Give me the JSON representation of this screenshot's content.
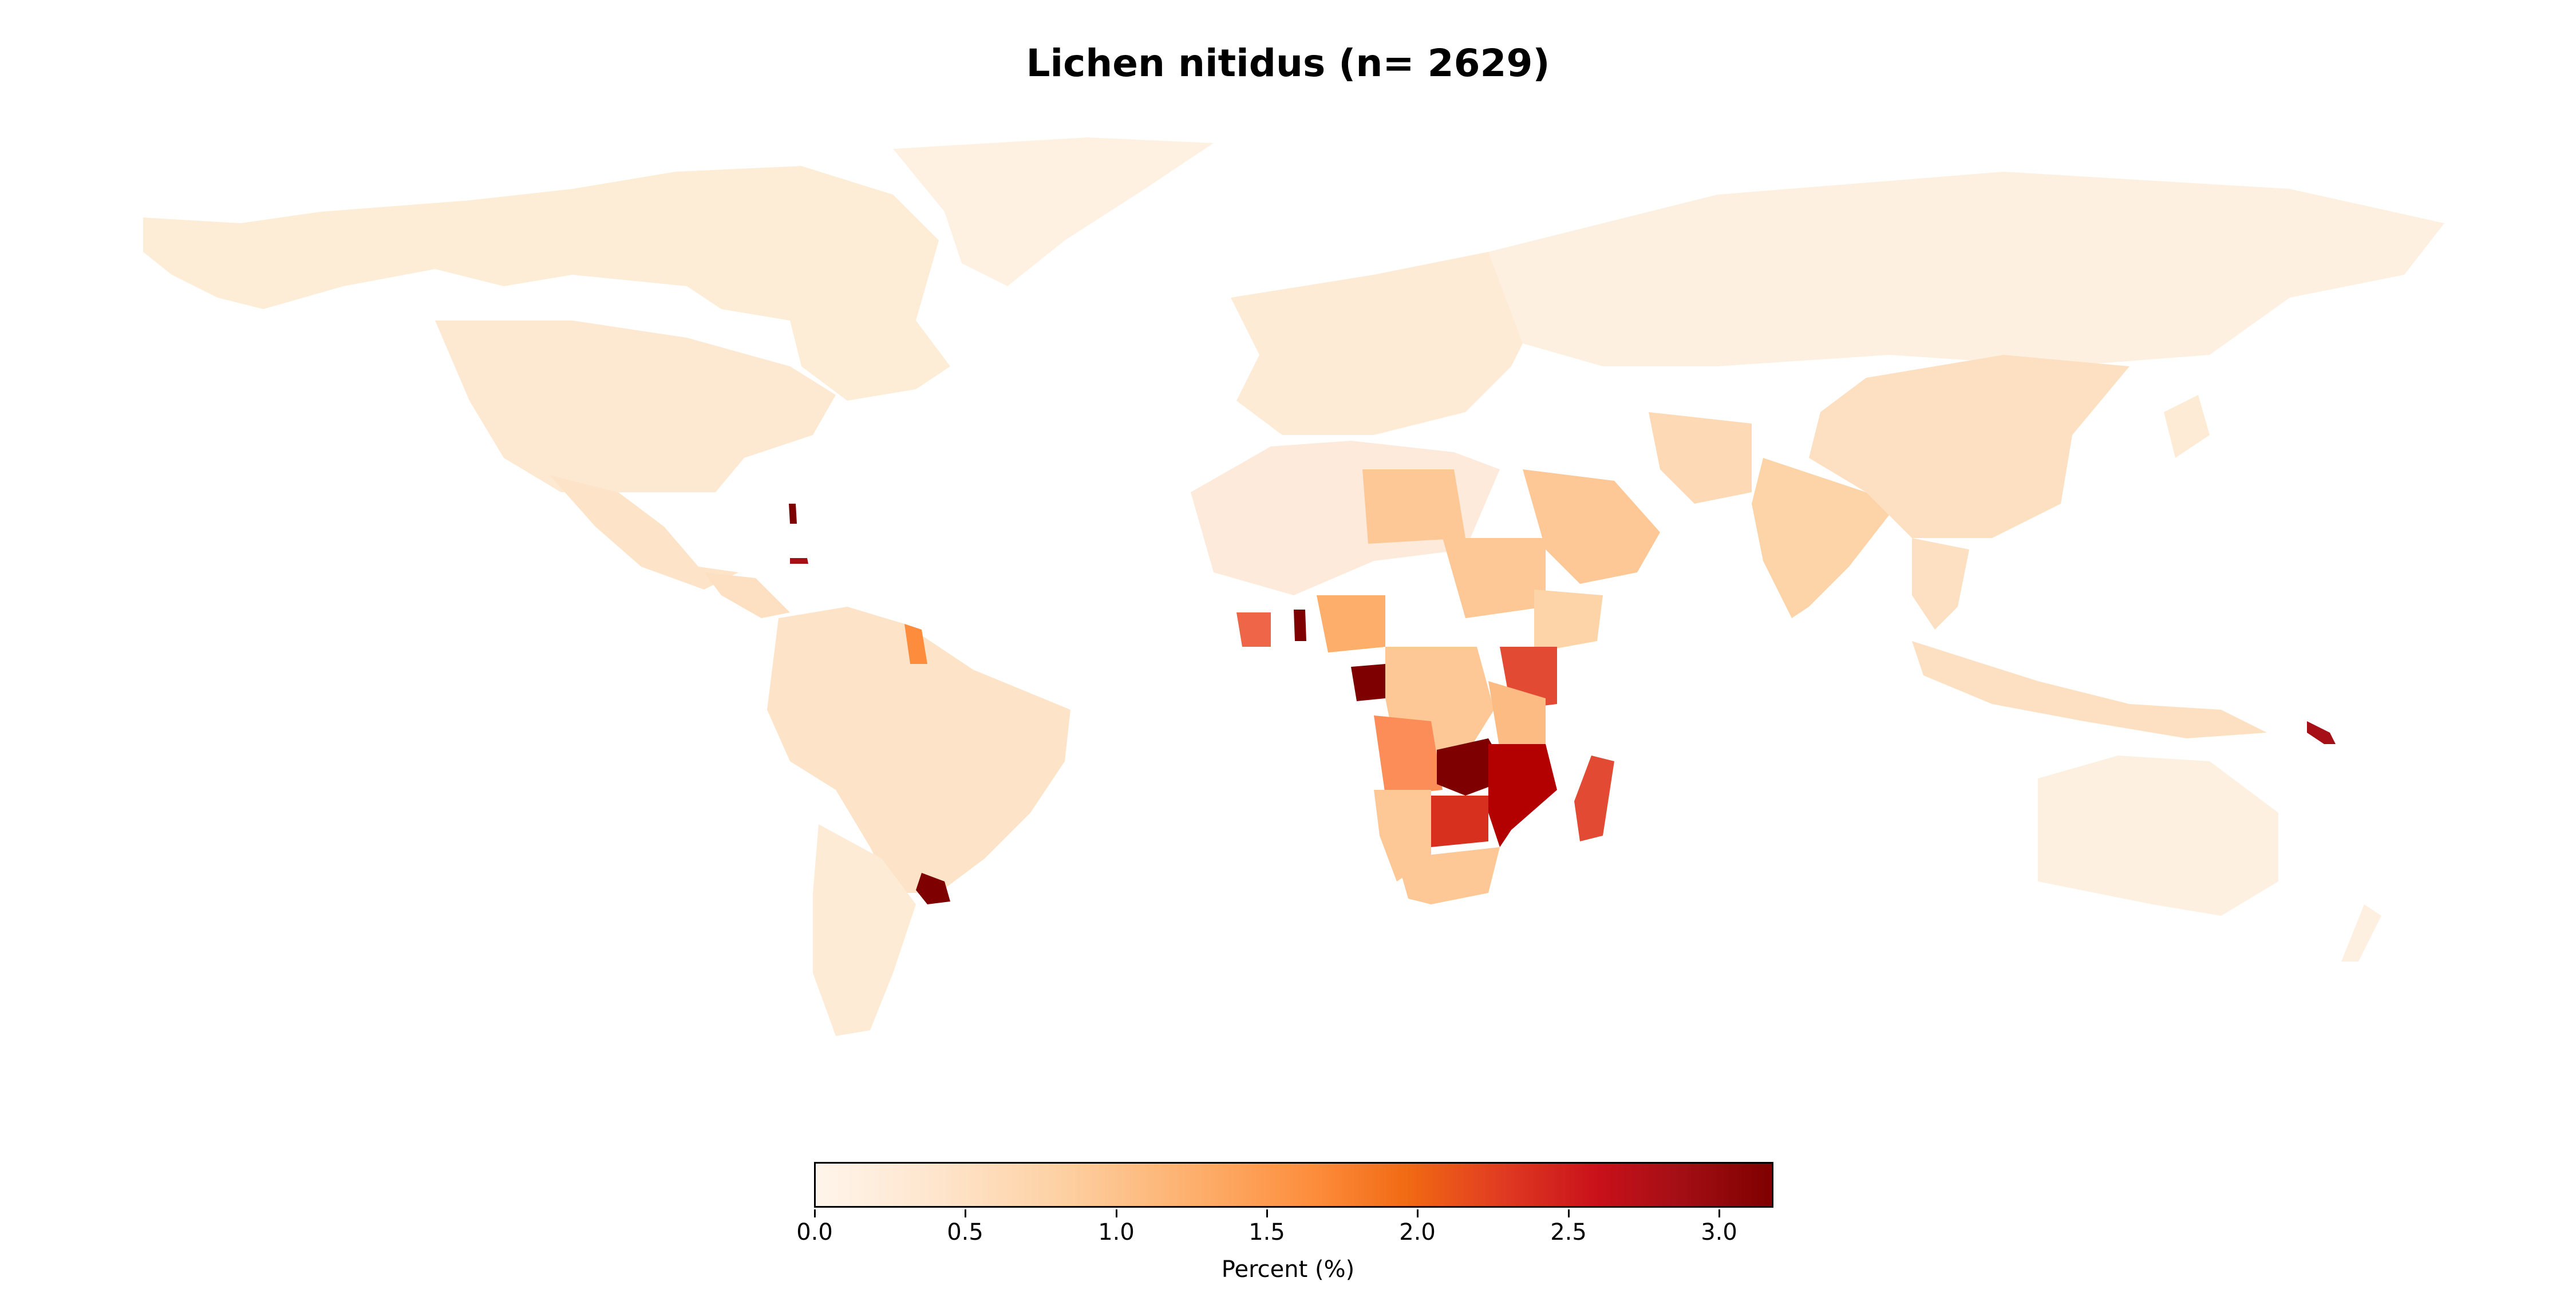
{
  "title": "Lichen nitidus (n= 2629)",
  "colorbar": {
    "label": "Percent (%)",
    "min": 0.0,
    "max": 3.18,
    "ticks": [
      "0.0",
      "0.5",
      "1.0",
      "1.5",
      "2.0",
      "2.5",
      "3.0"
    ],
    "tick_values": [
      0.0,
      0.5,
      1.0,
      1.5,
      2.0,
      2.5,
      3.0
    ],
    "colormap": "OrRd-like (white to dark red)"
  },
  "chart_data": {
    "type": "choropleth",
    "title": "Lichen nitidus (n= 2629)",
    "value_label": "Percent (%)",
    "range": [
      0.0,
      3.18
    ],
    "regions": [
      {
        "name": "Canada",
        "value": 0.12
      },
      {
        "name": "United States",
        "value": 0.15
      },
      {
        "name": "Mexico",
        "value": 0.25
      },
      {
        "name": "Greenland",
        "value": 0.1
      },
      {
        "name": "Brazil",
        "value": 0.3
      },
      {
        "name": "Argentina",
        "value": 0.2
      },
      {
        "name": "Uruguay",
        "value": 3.1
      },
      {
        "name": "Guyana",
        "value": 1.5
      },
      {
        "name": "Russia",
        "value": 0.15
      },
      {
        "name": "China",
        "value": 0.3
      },
      {
        "name": "India",
        "value": 0.7
      },
      {
        "name": "Saudi Arabia",
        "value": 0.8
      },
      {
        "name": "Iran",
        "value": 0.5
      },
      {
        "name": "Libya",
        "value": 0.6
      },
      {
        "name": "Sudan",
        "value": 0.8
      },
      {
        "name": "Ethiopia",
        "value": 0.9
      },
      {
        "name": "Kenya",
        "value": 2.2
      },
      {
        "name": "Nigeria",
        "value": 1.2
      },
      {
        "name": "Ghana",
        "value": 0.9
      },
      {
        "name": "Ivory Coast",
        "value": 1.8
      },
      {
        "name": "Togo",
        "value": 3.2
      },
      {
        "name": "Gabon",
        "value": 3.1
      },
      {
        "name": "DR Congo",
        "value": 0.9
      },
      {
        "name": "Tanzania",
        "value": 0.8
      },
      {
        "name": "Angola",
        "value": 1.3
      },
      {
        "name": "Zambia",
        "value": 3.2
      },
      {
        "name": "Malawi",
        "value": 3.1
      },
      {
        "name": "Mozambique",
        "value": 2.7
      },
      {
        "name": "Zimbabwe",
        "value": 2.5
      },
      {
        "name": "Botswana",
        "value": 1.9
      },
      {
        "name": "Namibia",
        "value": 0.9
      },
      {
        "name": "South Africa",
        "value": 0.8
      },
      {
        "name": "Madagascar",
        "value": 2.1
      },
      {
        "name": "Australia",
        "value": 0.12
      },
      {
        "name": "Indonesia",
        "value": 0.35
      },
      {
        "name": "Papua New Guinea",
        "value": 0.4
      },
      {
        "name": "Solomon Islands",
        "value": 3.0
      },
      {
        "name": "Bahamas",
        "value": 3.0
      }
    ]
  }
}
